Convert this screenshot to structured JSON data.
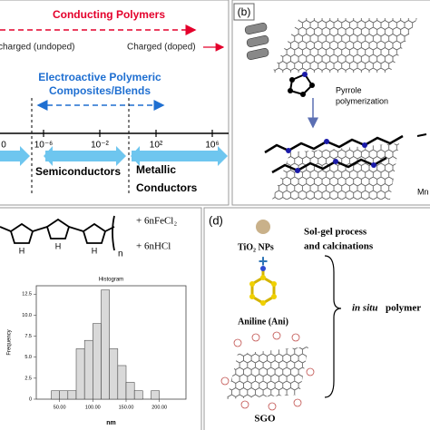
{
  "panel_a": {
    "title": "Conducting Polymers",
    "left_state": "charged (undoped)",
    "right_state": "Charged (doped)",
    "composites_line1": "Electroactive Polymeric",
    "composites_line2": "Composites/Blends",
    "scale_labels": [
      "0",
      "10⁻⁶",
      "10⁻²",
      "10²",
      "10⁶"
    ],
    "semiconductors": "Semiconductors",
    "metallic_line1": "Metallic",
    "metallic_line2": "Conductors"
  },
  "panel_b": {
    "label": "(b)",
    "step_line1": "Pyrrole",
    "step_line2": "polymerization",
    "cropped_text": "Mn"
  },
  "panel_c": {
    "repeat_n": "n",
    "nh_label": "H",
    "reagent": "+ 6nFeCl₂",
    "byproduct": "+ 6nHCl",
    "histogram": {
      "type": "histogram",
      "title": "Histogram",
      "x_label": "nm",
      "y_label": "Frequency",
      "bins": [
        37.5,
        50,
        62.5,
        75,
        87.5,
        100,
        112.5,
        125,
        137.5,
        150,
        162.5,
        175,
        187.5,
        200
      ],
      "counts": [
        1,
        1,
        1,
        6,
        7,
        9,
        13,
        6,
        4,
        2,
        1,
        0,
        1
      ],
      "color": "#d9d9d9",
      "xlim": [
        15,
        240
      ],
      "ylim": [
        0,
        13.5
      ],
      "xticks": [
        {
          "value": 50,
          "label": "50.00"
        },
        {
          "value": 100,
          "label": "100.00"
        },
        {
          "value": 150,
          "label": "150.00"
        },
        {
          "value": 200,
          "label": "200.00"
        }
      ],
      "yticks": [
        0,
        {
          "value": 2.5,
          "label": "2.5"
        },
        {
          "value": 5,
          "label": "5.0"
        },
        {
          "value": 7.5,
          "label": "7.5"
        },
        {
          "value": 10,
          "label": "10.0"
        },
        {
          "value": 12.5,
          "label": "12.5"
        }
      ]
    }
  },
  "panel_d": {
    "label": "(d)",
    "nanoparticles": "TiO₂ NPs",
    "process_line1": "Sol-gel process",
    "process_line2": "and calcinations",
    "plus": "+",
    "monomer": "Aniline (Ani)",
    "support": "SGO",
    "method_italic": "in situ",
    "method_bold": "polymer"
  }
}
